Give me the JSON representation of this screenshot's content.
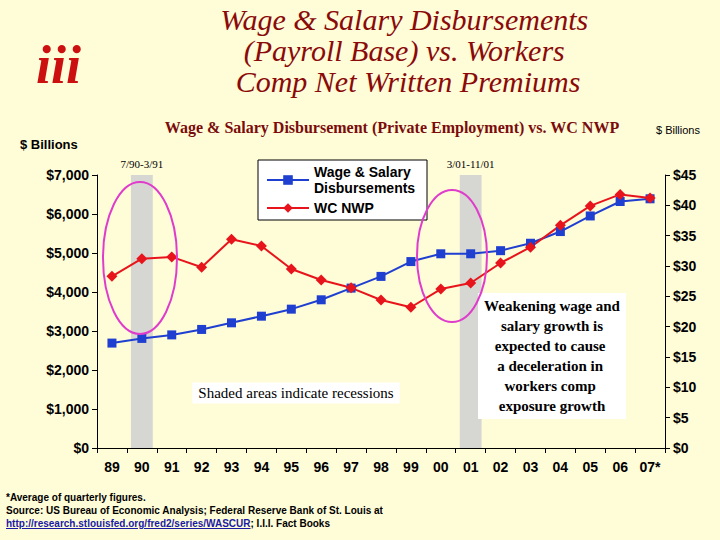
{
  "chart_data": {
    "type": "line",
    "logo": "iii",
    "title": "Wage & Salary Disbursements (Payroll Base) vs. Workers Comp Net Written Premiums",
    "subtitle": "Wage & Salary Disbursement (Private Employment) vs. WC NWP",
    "y_label": "$ Billions",
    "y2_label": "$ Billions",
    "categories": [
      "89",
      "90",
      "91",
      "92",
      "93",
      "94",
      "95",
      "96",
      "97",
      "98",
      "99",
      "00",
      "01",
      "02",
      "03",
      "04",
      "05",
      "06",
      "07*"
    ],
    "series": [
      {
        "name": "Wage & Salary Disbursements",
        "color": "#1f3fd1",
        "marker": "square",
        "line_style": "solid",
        "values": [
          2690,
          2810,
          2900,
          3040,
          3210,
          3380,
          3560,
          3800,
          4100,
          4400,
          4780,
          4980,
          4980,
          5060,
          5250,
          5550,
          5950,
          6320,
          6390
        ]
      },
      {
        "name": "WC NWP",
        "color": "#e8141c",
        "marker": "diamond",
        "line_style": "solid",
        "axis": "y2",
        "values": [
          28.3,
          31.2,
          31.5,
          29.8,
          34.4,
          33.3,
          29.5,
          27.7,
          26.4,
          24.4,
          23.2,
          26.2,
          27.2,
          30.5,
          33.1,
          36.7,
          39.9,
          41.8,
          41.2
        ]
      }
    ],
    "ylim": [
      0,
      7000
    ],
    "yticks": [
      {
        "value": 0,
        "label": "$0"
      },
      {
        "value": 1000,
        "label": "$1,000"
      },
      {
        "value": 2000,
        "label": "$2,000"
      },
      {
        "value": 3000,
        "label": "$3,000"
      },
      {
        "value": 4000,
        "label": "$4,000"
      },
      {
        "value": 5000,
        "label": "$5,000"
      },
      {
        "value": 6000,
        "label": "$6,000"
      },
      {
        "value": 7000,
        "label": "$7,000"
      }
    ],
    "y2lim": [
      0,
      45
    ],
    "y2ticks": [
      {
        "value": 0,
        "label": "$0"
      },
      {
        "value": 5,
        "label": "$5"
      },
      {
        "value": 10,
        "label": "$10"
      },
      {
        "value": 15,
        "label": "$15"
      },
      {
        "value": 20,
        "label": "$20"
      },
      {
        "value": 25,
        "label": "$25"
      },
      {
        "value": 30,
        "label": "$30"
      },
      {
        "value": 35,
        "label": "$35"
      },
      {
        "value": 40,
        "label": "$40"
      },
      {
        "value": 45,
        "label": "$45"
      }
    ],
    "grid": false,
    "legend": "top",
    "recessions": [
      {
        "label": "7/90-3/91",
        "category": "90"
      },
      {
        "label": "3/01-11/01",
        "category": "01"
      }
    ],
    "annotations": [
      "Shaded areas indicate recessions",
      "Weakening wage and salary growth is expected to cause a deceleration in workers comp exposure growth"
    ],
    "notes": [
      "*Average of quarterly figures.",
      "Source: US Bureau of Economic Analysis; Federal Reserve Bank of St. Louis at"
    ],
    "source_link": "http://research.stlouisfed.org/fred2/series/WASCUR",
    "source_after": "; I.I.I. Fact Books"
  }
}
